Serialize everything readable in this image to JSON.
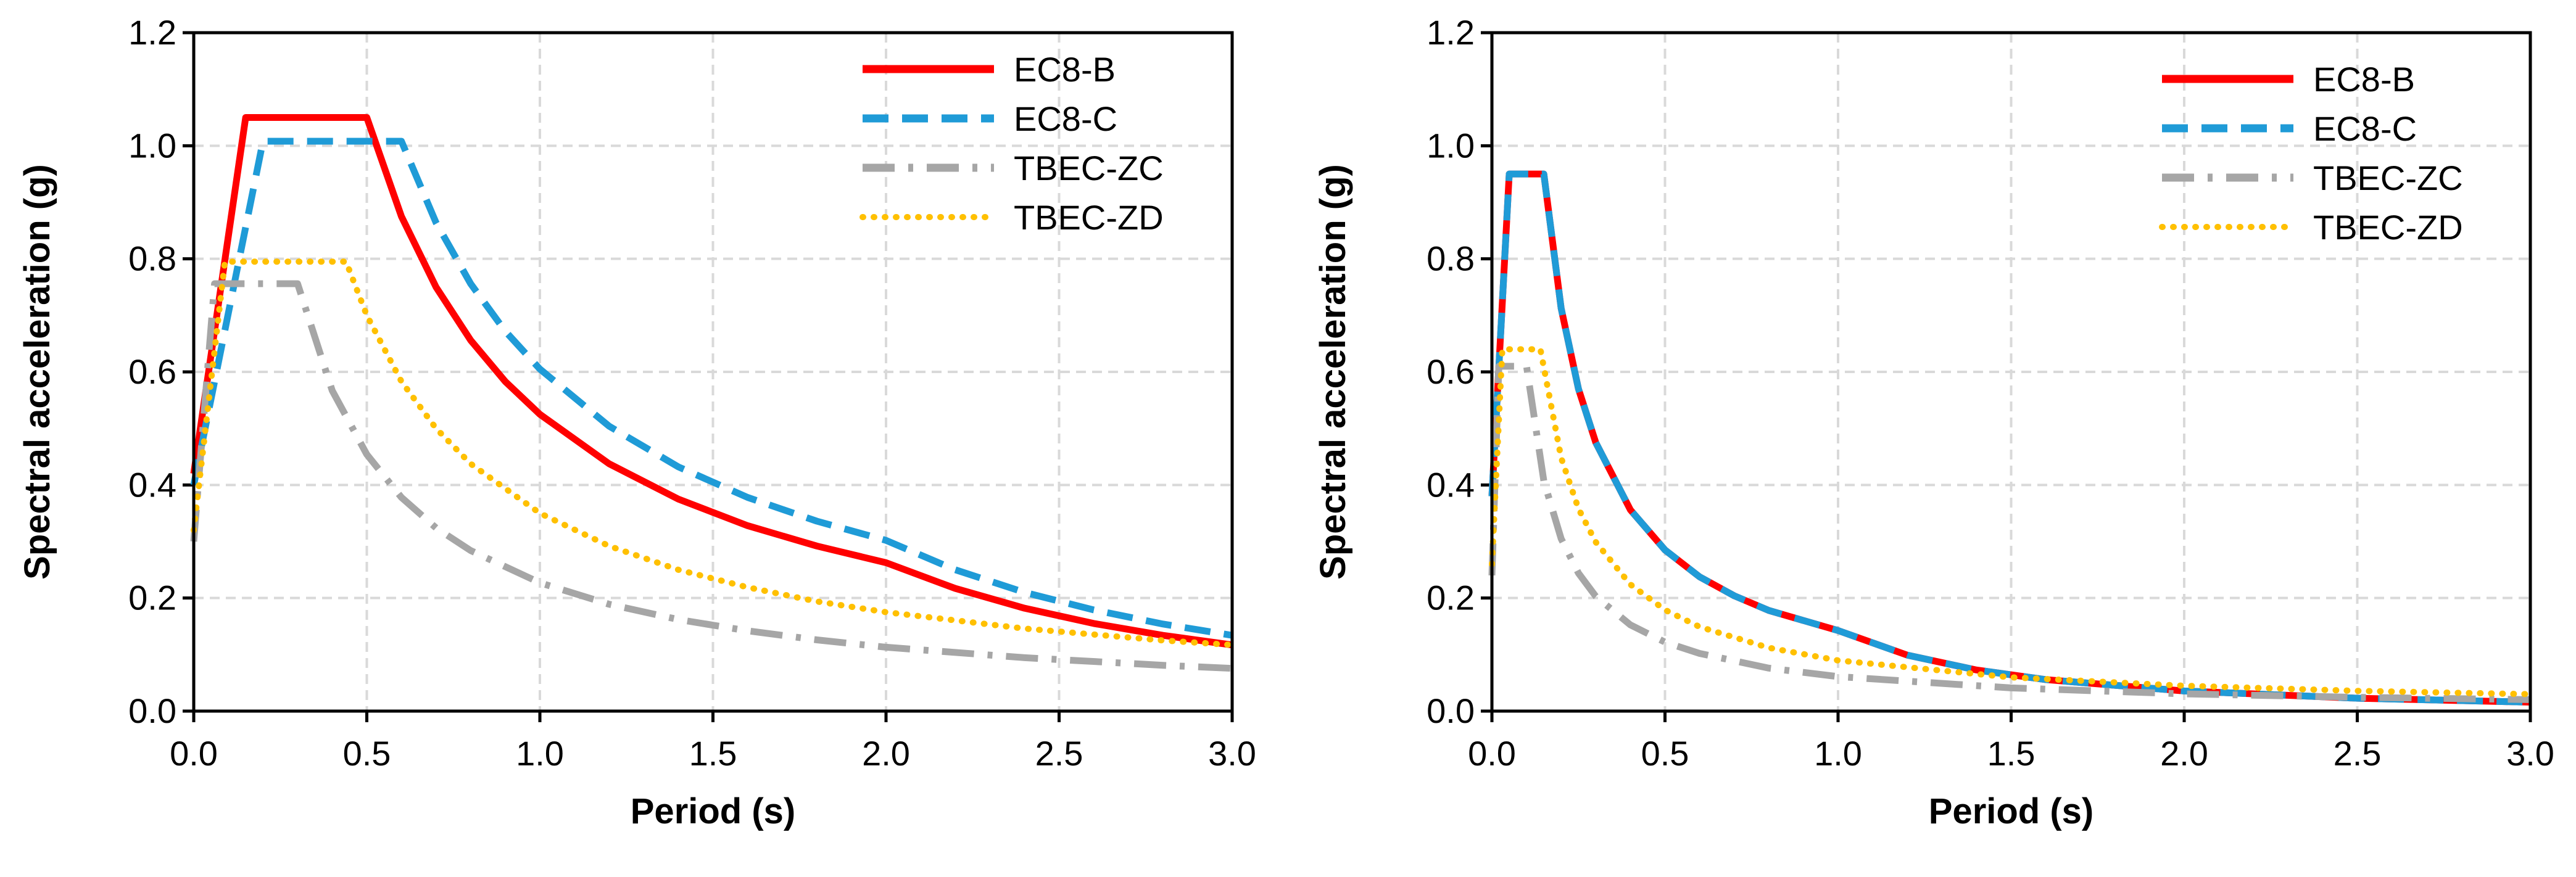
{
  "chart_data": [
    {
      "type": "line",
      "xlabel": "Period (s)",
      "ylabel": "Spectral acceleration (g)",
      "xlim": [
        0,
        3.0
      ],
      "ylim": [
        0,
        1.2
      ],
      "xticks": [
        "0.0",
        "0.5",
        "1.0",
        "1.5",
        "2.0",
        "2.5",
        "3.0"
      ],
      "yticks": [
        "0.0",
        "0.2",
        "0.4",
        "0.6",
        "0.8",
        "1.0",
        "1.2"
      ],
      "grid": true,
      "legend_position": "top-right",
      "series": [
        {
          "name": "EC8-B",
          "color": "#ff0000",
          "style": "solid",
          "x": [
            0,
            0.15,
            0.5,
            0.6,
            0.7,
            0.8,
            0.9,
            1.0,
            1.2,
            1.4,
            1.6,
            1.8,
            2.0,
            2.2,
            2.4,
            2.6,
            2.8,
            3.0
          ],
          "y": [
            0.42,
            1.05,
            1.05,
            0.875,
            0.75,
            0.656,
            0.583,
            0.525,
            0.4375,
            0.375,
            0.328,
            0.292,
            0.2625,
            0.217,
            0.182,
            0.155,
            0.134,
            0.117
          ]
        },
        {
          "name": "EC8-C",
          "color": "#1f9bd7",
          "style": "dashed",
          "x": [
            0,
            0.2,
            0.6,
            0.7,
            0.8,
            0.9,
            1.0,
            1.2,
            1.4,
            1.6,
            1.8,
            2.0,
            2.2,
            2.4,
            2.6,
            2.8,
            3.0
          ],
          "y": [
            0.4,
            1.008,
            1.008,
            0.864,
            0.756,
            0.672,
            0.605,
            0.504,
            0.432,
            0.378,
            0.336,
            0.302,
            0.25,
            0.21,
            0.179,
            0.154,
            0.134
          ]
        },
        {
          "name": "TBEC-ZC",
          "color": "#a6a6a6",
          "style": "dashdot",
          "x": [
            0,
            0.06,
            0.3,
            0.4,
            0.5,
            0.6,
            0.7,
            0.8,
            1.0,
            1.2,
            1.4,
            1.6,
            1.8,
            2.0,
            2.4,
            2.8,
            3.0
          ],
          "y": [
            0.3,
            0.756,
            0.756,
            0.567,
            0.454,
            0.378,
            0.324,
            0.284,
            0.227,
            0.189,
            0.162,
            0.142,
            0.126,
            0.113,
            0.0945,
            0.081,
            0.0756
          ]
        },
        {
          "name": "TBEC-ZD",
          "color": "#ffc000",
          "style": "dotted",
          "x": [
            0,
            0.09,
            0.44,
            0.5,
            0.6,
            0.7,
            0.8,
            1.0,
            1.2,
            1.4,
            1.6,
            1.8,
            2.0,
            2.4,
            2.8,
            3.0
          ],
          "y": [
            0.32,
            0.795,
            0.795,
            0.7,
            0.583,
            0.5,
            0.4375,
            0.35,
            0.292,
            0.25,
            0.219,
            0.194,
            0.175,
            0.146,
            0.125,
            0.117
          ]
        }
      ]
    },
    {
      "type": "line",
      "xlabel": "Period (s)",
      "ylabel": "Spectral acceleration (g)",
      "xlim": [
        0,
        3.0
      ],
      "ylim": [
        0,
        1.2
      ],
      "xticks": [
        "0.0",
        "0.5",
        "1.0",
        "1.5",
        "2.0",
        "2.5",
        "3.0"
      ],
      "yticks": [
        "0.0",
        "0.2",
        "0.4",
        "0.6",
        "0.8",
        "1.0",
        "1.2"
      ],
      "grid": true,
      "legend_position": "top-right",
      "series": [
        {
          "name": "EC8-B",
          "color": "#ff0000",
          "style": "solid",
          "x": [
            0,
            0.05,
            0.15,
            0.2,
            0.25,
            0.3,
            0.4,
            0.5,
            0.6,
            0.7,
            0.8,
            1.0,
            1.2,
            1.4,
            1.6,
            2.0,
            2.5,
            3.0
          ],
          "y": [
            0.38,
            0.95,
            0.95,
            0.7125,
            0.57,
            0.475,
            0.356,
            0.285,
            0.2375,
            0.204,
            0.178,
            0.1425,
            0.099,
            0.0727,
            0.0557,
            0.0356,
            0.0228,
            0.0158
          ]
        },
        {
          "name": "EC8-C",
          "color": "#1f9bd7",
          "style": "dashed",
          "x": [
            0,
            0.05,
            0.15,
            0.2,
            0.25,
            0.3,
            0.4,
            0.5,
            0.6,
            0.7,
            0.8,
            1.0,
            1.2,
            1.4,
            1.6,
            2.0,
            2.5,
            3.0
          ],
          "y": [
            0.38,
            0.95,
            0.95,
            0.7125,
            0.57,
            0.475,
            0.356,
            0.285,
            0.2375,
            0.204,
            0.178,
            0.1425,
            0.099,
            0.0727,
            0.0557,
            0.0356,
            0.0228,
            0.0158
          ]
        },
        {
          "name": "TBEC-ZC",
          "color": "#a6a6a6",
          "style": "dashdot",
          "x": [
            0,
            0.02,
            0.1,
            0.15,
            0.2,
            0.25,
            0.3,
            0.4,
            0.5,
            0.6,
            0.8,
            1.0,
            1.5,
            2.0,
            2.5,
            3.0
          ],
          "y": [
            0.24,
            0.61,
            0.61,
            0.407,
            0.305,
            0.244,
            0.203,
            0.1525,
            0.122,
            0.102,
            0.076,
            0.061,
            0.041,
            0.0305,
            0.0244,
            0.0203
          ]
        },
        {
          "name": "TBEC-ZD",
          "color": "#ffc000",
          "style": "dotted",
          "x": [
            0,
            0.03,
            0.14,
            0.2,
            0.25,
            0.3,
            0.4,
            0.5,
            0.6,
            0.8,
            1.0,
            1.5,
            2.0,
            2.5,
            3.0
          ],
          "y": [
            0.26,
            0.64,
            0.64,
            0.448,
            0.358,
            0.299,
            0.224,
            0.179,
            0.149,
            0.112,
            0.0896,
            0.0597,
            0.0448,
            0.0358,
            0.0299
          ]
        }
      ]
    }
  ]
}
